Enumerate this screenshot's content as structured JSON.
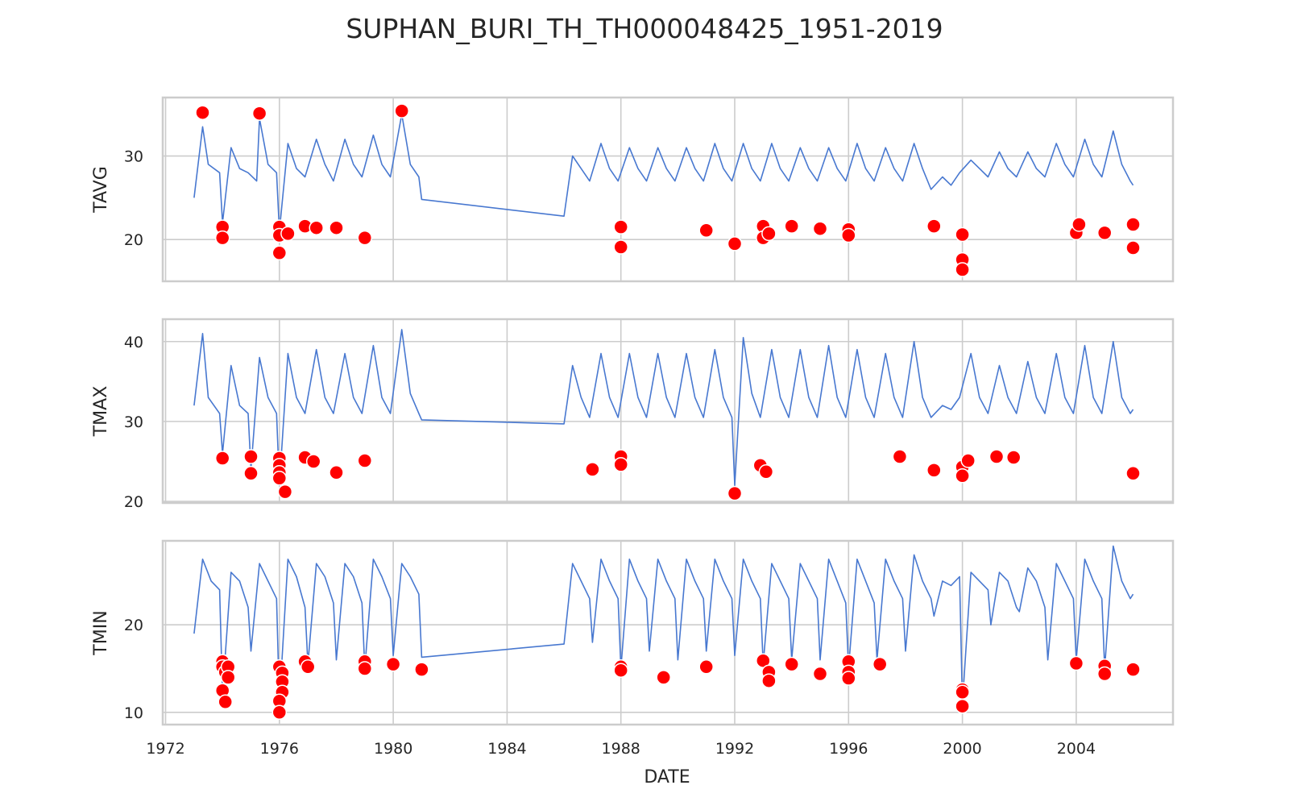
{
  "chart_data": {
    "type": "line",
    "title": "SUPHAN_BURI_TH_TH000048425_1951-2019",
    "xlabel": "DATE",
    "x_ticks": [
      "1972",
      "1976",
      "1980",
      "1984",
      "1988",
      "1992",
      "1996",
      "2000",
      "2004"
    ],
    "xlim": [
      1971.9,
      2007.4
    ],
    "grid": true,
    "legend": "none",
    "colors": {
      "line": "#4878d0",
      "anomaly": "#ff0000"
    },
    "panels": [
      {
        "ylabel": "TAVG",
        "ylim": [
          15,
          37
        ],
        "yticks": [
          20,
          30
        ],
        "series": [
          {
            "x": [
              1973.0,
              1973.3,
              1973.5,
              1973.9,
              1974.0,
              1974.3,
              1974.6,
              1974.9,
              1975.2,
              1975.3,
              1975.6,
              1975.9,
              1976.0,
              1976.3,
              1976.6,
              1976.9,
              1977.3,
              1977.6,
              1977.9,
              1978.3,
              1978.6,
              1978.9,
              1979.3,
              1979.6,
              1979.9,
              1980.3,
              1980.6,
              1980.9,
              1981.0,
              1986.0,
              1986.3,
              1986.6,
              1986.9,
              1987.3,
              1987.6,
              1987.9,
              1988.3,
              1988.6,
              1988.9,
              1989.3,
              1989.6,
              1989.9,
              1990.3,
              1990.6,
              1990.9,
              1991.3,
              1991.6,
              1991.9,
              1992.3,
              1992.6,
              1992.9,
              1993.3,
              1993.6,
              1993.9,
              1994.3,
              1994.6,
              1994.9,
              1995.3,
              1995.6,
              1995.9,
              1996.3,
              1996.6,
              1996.9,
              1997.3,
              1997.6,
              1997.9,
              1998.3,
              1998.6,
              1998.9,
              1999.3,
              1999.6,
              1999.9,
              2000.3,
              2000.6,
              2000.9,
              2001.3,
              2001.6,
              2001.9,
              2002.3,
              2002.6,
              2002.9,
              2003.3,
              2003.6,
              2003.9,
              2004.3,
              2004.6,
              2004.9,
              2005.3,
              2005.6,
              2005.9,
              2006.0
            ],
            "y": [
              25.0,
              33.5,
              29.0,
              28.0,
              22.0,
              31.0,
              28.5,
              28.0,
              27.0,
              34.5,
              29.0,
              28.0,
              21.0,
              31.5,
              28.5,
              27.5,
              32.0,
              29.0,
              27.0,
              32.0,
              29.0,
              27.5,
              32.5,
              29.0,
              27.5,
              35.0,
              29.0,
              27.5,
              24.8,
              22.8,
              30.0,
              28.5,
              27.0,
              31.5,
              28.5,
              27.0,
              31.0,
              28.5,
              27.0,
              31.0,
              28.5,
              27.0,
              31.0,
              28.5,
              27.0,
              31.5,
              28.5,
              27.0,
              31.5,
              28.5,
              27.0,
              31.5,
              28.5,
              27.0,
              31.0,
              28.5,
              27.0,
              31.0,
              28.5,
              27.0,
              31.5,
              28.5,
              27.0,
              31.0,
              28.5,
              27.0,
              31.5,
              28.5,
              26.0,
              27.5,
              26.5,
              28.0,
              29.5,
              28.5,
              27.5,
              30.5,
              28.5,
              27.5,
              30.5,
              28.5,
              27.5,
              31.5,
              29.0,
              27.5,
              32.0,
              29.0,
              27.5,
              33.0,
              29.0,
              27.0,
              26.5
            ]
          }
        ],
        "anomalies": {
          "x": [
            1973.3,
            1974.0,
            1974.0,
            1975.3,
            1976.0,
            1976.0,
            1976.0,
            1976.3,
            1976.9,
            1977.3,
            1978.0,
            1979.0,
            1980.3,
            1988.0,
            1988.0,
            1991.0,
            1992.0,
            1993.0,
            1993.0,
            1993.2,
            1994.0,
            1995.0,
            1996.0,
            1996.0,
            1999.0,
            2000.0,
            2000.0,
            2000.0,
            2004.0,
            2004.1,
            2005.0,
            2006.0,
            2006.0
          ],
          "y": [
            35.2,
            21.5,
            20.2,
            35.1,
            21.5,
            20.5,
            18.4,
            20.7,
            21.6,
            21.4,
            21.4,
            20.2,
            35.4,
            21.5,
            19.1,
            21.1,
            19.5,
            21.6,
            20.2,
            20.7,
            21.6,
            21.3,
            21.2,
            20.5,
            21.6,
            20.6,
            17.6,
            16.4,
            20.8,
            21.8,
            20.8,
            21.8,
            19.0
          ]
        }
      },
      {
        "ylabel": "TMAX",
        "ylim": [
          19.8,
          42.8
        ],
        "yticks": [
          20,
          30,
          40
        ],
        "series": [
          {
            "x": [
              1973.0,
              1973.3,
              1973.5,
              1973.9,
              1974.0,
              1974.3,
              1974.6,
              1974.9,
              1975.0,
              1975.3,
              1975.6,
              1975.9,
              1976.0,
              1976.3,
              1976.6,
              1976.9,
              1977.3,
              1977.6,
              1977.9,
              1978.3,
              1978.6,
              1978.9,
              1979.3,
              1979.6,
              1979.9,
              1980.3,
              1980.6,
              1980.9,
              1981.0,
              1986.0,
              1986.3,
              1986.6,
              1986.9,
              1987.3,
              1987.6,
              1987.9,
              1988.3,
              1988.6,
              1988.9,
              1989.3,
              1989.6,
              1989.9,
              1990.3,
              1990.6,
              1990.9,
              1991.3,
              1991.6,
              1991.9,
              1992.0,
              1992.3,
              1992.6,
              1992.9,
              1993.3,
              1993.6,
              1993.9,
              1994.3,
              1994.6,
              1994.9,
              1995.3,
              1995.6,
              1995.9,
              1996.3,
              1996.6,
              1996.9,
              1997.3,
              1997.6,
              1997.9,
              1998.3,
              1998.6,
              1998.9,
              1999.3,
              1999.6,
              1999.9,
              2000.3,
              2000.6,
              2000.9,
              2001.3,
              2001.6,
              2001.9,
              2002.3,
              2002.6,
              2002.9,
              2003.3,
              2003.6,
              2003.9,
              2004.3,
              2004.6,
              2004.9,
              2005.3,
              2005.6,
              2005.9,
              2006.0
            ],
            "y": [
              32.0,
              41.0,
              33.0,
              31.0,
              26.0,
              37.0,
              32.0,
              31.0,
              24.0,
              38.0,
              33.0,
              31.0,
              22.0,
              38.5,
              33.0,
              31.0,
              39.0,
              33.0,
              31.0,
              38.5,
              33.0,
              31.0,
              39.5,
              33.0,
              31.0,
              41.5,
              33.5,
              31.0,
              30.2,
              29.7,
              37.0,
              33.0,
              30.5,
              38.5,
              33.0,
              30.5,
              38.5,
              33.0,
              30.5,
              38.5,
              33.0,
              30.5,
              38.5,
              33.0,
              30.5,
              39.0,
              33.0,
              30.5,
              22.0,
              40.5,
              33.5,
              30.5,
              39.0,
              33.0,
              30.5,
              39.0,
              33.0,
              30.5,
              39.5,
              33.0,
              30.5,
              39.0,
              33.0,
              30.5,
              38.5,
              33.0,
              30.5,
              40.0,
              33.0,
              30.5,
              32.0,
              31.5,
              33.0,
              38.5,
              33.0,
              31.0,
              37.0,
              33.0,
              31.0,
              37.5,
              33.0,
              31.0,
              38.5,
              33.0,
              31.0,
              39.5,
              33.0,
              31.0,
              40.0,
              33.0,
              31.0,
              31.5
            ]
          }
        ],
        "anomalies": {
          "x": [
            1974.0,
            1975.0,
            1975.0,
            1976.0,
            1976.0,
            1976.0,
            1976.0,
            1976.2,
            1976.9,
            1977.2,
            1978.0,
            1979.0,
            1987.0,
            1988.0,
            1988.0,
            1992.0,
            1992.9,
            1993.1,
            1997.8,
            1999.0,
            2000.0,
            2000.0,
            2000.2,
            2001.2,
            2001.8,
            2006.0
          ],
          "y": [
            25.4,
            25.6,
            23.5,
            25.4,
            24.5,
            23.6,
            22.9,
            21.2,
            25.5,
            25.0,
            23.6,
            25.1,
            24.0,
            25.6,
            24.6,
            21.0,
            24.5,
            23.7,
            25.6,
            23.9,
            24.3,
            23.2,
            25.1,
            25.6,
            25.5,
            23.5
          ]
        }
      },
      {
        "ylabel": "TMIN",
        "ylim": [
          8.6,
          29.6
        ],
        "yticks": [
          10,
          20
        ],
        "series": [
          {
            "x": [
              1973.0,
              1973.3,
              1973.6,
              1973.9,
              1974.0,
              1974.3,
              1974.6,
              1974.9,
              1975.0,
              1975.3,
              1975.6,
              1975.9,
              1976.0,
              1976.3,
              1976.6,
              1976.9,
              1977.0,
              1977.3,
              1977.6,
              1977.9,
              1978.0,
              1978.3,
              1978.6,
              1978.9,
              1979.0,
              1979.3,
              1979.6,
              1979.9,
              1980.0,
              1980.3,
              1980.6,
              1980.9,
              1981.0,
              1986.0,
              1986.3,
              1986.6,
              1986.9,
              1987.0,
              1987.3,
              1987.6,
              1987.9,
              1988.0,
              1988.3,
              1988.6,
              1988.9,
              1989.0,
              1989.3,
              1989.6,
              1989.9,
              1990.0,
              1990.3,
              1990.6,
              1990.9,
              1991.0,
              1991.3,
              1991.6,
              1991.9,
              1992.0,
              1992.3,
              1992.6,
              1992.9,
              1993.0,
              1993.3,
              1993.6,
              1993.9,
              1994.0,
              1994.3,
              1994.6,
              1994.9,
              1995.0,
              1995.3,
              1995.6,
              1995.9,
              1996.0,
              1996.3,
              1996.6,
              1996.9,
              1997.0,
              1997.3,
              1997.6,
              1997.9,
              1998.0,
              1998.3,
              1998.6,
              1998.9,
              1999.0,
              1999.3,
              1999.6,
              1999.9,
              2000.0,
              2000.3,
              2000.6,
              2000.9,
              2001.0,
              2001.3,
              2001.6,
              2001.9,
              2002.0,
              2002.3,
              2002.6,
              2002.9,
              2003.0,
              2003.3,
              2003.6,
              2003.9,
              2004.0,
              2004.3,
              2004.6,
              2004.9,
              2005.0,
              2005.3,
              2005.6,
              2005.9,
              2006.0
            ],
            "y": [
              19.0,
              27.5,
              25.0,
              24.0,
              12.0,
              26.0,
              25.0,
              22.0,
              17.0,
              27.0,
              25.0,
              23.0,
              11.0,
              27.5,
              25.5,
              22.0,
              15.5,
              27.0,
              25.5,
              22.5,
              16.0,
              27.0,
              25.5,
              22.5,
              15.0,
              27.5,
              25.5,
              23.0,
              16.5,
              27.0,
              25.5,
              23.5,
              16.3,
              17.8,
              27.0,
              25.0,
              23.0,
              18.0,
              27.5,
              25.0,
              23.0,
              15.0,
              27.5,
              25.0,
              23.0,
              17.0,
              27.5,
              25.0,
              23.0,
              16.0,
              27.5,
              25.0,
              23.0,
              17.0,
              27.5,
              25.0,
              23.0,
              16.5,
              27.5,
              25.0,
              23.0,
              15.5,
              27.0,
              25.0,
              23.0,
              16.0,
              27.0,
              25.0,
              23.0,
              16.0,
              27.5,
              25.0,
              22.5,
              15.0,
              27.5,
              25.0,
              22.5,
              16.0,
              27.5,
              25.0,
              23.0,
              17.0,
              28.0,
              25.0,
              23.0,
              21.0,
              25.0,
              24.5,
              25.5,
              11.0,
              26.0,
              25.0,
              24.0,
              20.0,
              26.0,
              25.0,
              22.0,
              21.5,
              26.5,
              25.0,
              22.0,
              16.0,
              27.0,
              25.0,
              23.0,
              16.0,
              27.5,
              25.0,
              23.0,
              15.0,
              29.0,
              25.0,
              23.0,
              23.5
            ]
          }
        ],
        "anomalies": {
          "x": [
            1974.0,
            1974.0,
            1974.1,
            1974.2,
            1974.2,
            1974.0,
            1974.1,
            1976.0,
            1976.1,
            1976.1,
            1976.1,
            1976.0,
            1976.0,
            1976.9,
            1977.0,
            1979.0,
            1979.0,
            1980.0,
            1981.0,
            1988.0,
            1988.0,
            1989.5,
            1991.0,
            1993.0,
            1993.2,
            1993.2,
            1994.0,
            1995.0,
            1996.0,
            1996.0,
            1996.0,
            1997.1,
            2000.0,
            2000.0,
            2000.0,
            2004.0,
            2005.0,
            2005.0,
            2006.0
          ],
          "y": [
            15.8,
            15.2,
            14.6,
            15.2,
            14.0,
            12.5,
            11.2,
            15.2,
            14.5,
            13.5,
            12.3,
            11.3,
            10.0,
            15.8,
            15.2,
            15.8,
            15.0,
            15.5,
            14.9,
            15.2,
            14.8,
            14.0,
            15.2,
            15.9,
            14.6,
            13.6,
            15.5,
            14.4,
            15.8,
            14.6,
            13.9,
            15.5,
            12.6,
            12.3,
            10.7,
            15.6,
            15.3,
            14.4,
            14.9
          ]
        }
      }
    ]
  }
}
